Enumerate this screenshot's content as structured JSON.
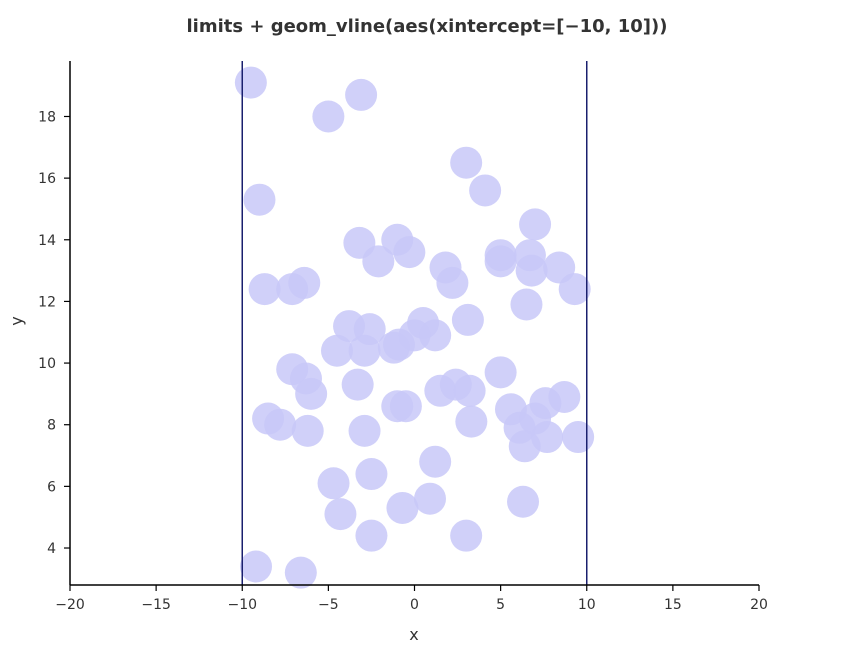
{
  "chart_data": {
    "type": "scatter",
    "title": "limits + geom_vline(aes(xintercept=[−10, 10]))",
    "xlabel": "x",
    "ylabel": "y",
    "xlim": [
      -20,
      20
    ],
    "ylim": [
      2.8,
      19.8
    ],
    "xticks": [
      -20,
      -15,
      -10,
      -5,
      0,
      5,
      10,
      15,
      20
    ],
    "xtick_labels": [
      "−20",
      "−15",
      "−10",
      "−5",
      "0",
      "5",
      "10",
      "15",
      "20"
    ],
    "yticks": [
      4,
      6,
      8,
      10,
      12,
      14,
      16,
      18
    ],
    "ytick_labels": [
      "4",
      "6",
      "8",
      "10",
      "12",
      "14",
      "16",
      "18"
    ],
    "vlines": [
      -10,
      10
    ],
    "grid": false,
    "colors": {
      "point": "#c8c8f8",
      "vline": "#1a1f6e",
      "axis": "#000000",
      "text": "#333333"
    },
    "points": [
      {
        "x": -9.5,
        "y": 19.1
      },
      {
        "x": -3.1,
        "y": 18.7
      },
      {
        "x": -5.0,
        "y": 18.0
      },
      {
        "x": -9.0,
        "y": 15.3
      },
      {
        "x": 3.0,
        "y": 16.5
      },
      {
        "x": 4.1,
        "y": 15.6
      },
      {
        "x": 7.0,
        "y": 14.5
      },
      {
        "x": -3.2,
        "y": 13.9
      },
      {
        "x": -1.0,
        "y": 14.0
      },
      {
        "x": -2.1,
        "y": 13.3
      },
      {
        "x": -0.3,
        "y": 13.6
      },
      {
        "x": 1.8,
        "y": 13.1
      },
      {
        "x": 2.2,
        "y": 12.6
      },
      {
        "x": 5.0,
        "y": 13.5
      },
      {
        "x": 5.0,
        "y": 13.3
      },
      {
        "x": 6.7,
        "y": 13.5
      },
      {
        "x": 6.8,
        "y": 13.0
      },
      {
        "x": 8.4,
        "y": 13.1
      },
      {
        "x": 6.5,
        "y": 11.9
      },
      {
        "x": 9.3,
        "y": 12.4
      },
      {
        "x": -8.7,
        "y": 12.4
      },
      {
        "x": -7.1,
        "y": 12.4
      },
      {
        "x": -6.4,
        "y": 12.6
      },
      {
        "x": -3.8,
        "y": 11.2
      },
      {
        "x": -2.6,
        "y": 11.1
      },
      {
        "x": -4.5,
        "y": 10.4
      },
      {
        "x": -2.9,
        "y": 10.4
      },
      {
        "x": -1.2,
        "y": 10.5
      },
      {
        "x": -0.9,
        "y": 10.6
      },
      {
        "x": 0.5,
        "y": 11.3
      },
      {
        "x": 1.2,
        "y": 10.9
      },
      {
        "x": 3.1,
        "y": 11.4
      },
      {
        "x": 0.0,
        "y": 10.9
      },
      {
        "x": -7.1,
        "y": 9.8
      },
      {
        "x": -6.3,
        "y": 9.5
      },
      {
        "x": -6.0,
        "y": 9.0
      },
      {
        "x": -3.3,
        "y": 9.3
      },
      {
        "x": 5.0,
        "y": 9.7
      },
      {
        "x": 1.5,
        "y": 9.1
      },
      {
        "x": 2.4,
        "y": 9.3
      },
      {
        "x": 3.2,
        "y": 9.1
      },
      {
        "x": 3.3,
        "y": 8.1
      },
      {
        "x": 5.6,
        "y": 8.5
      },
      {
        "x": 6.1,
        "y": 7.9
      },
      {
        "x": 6.4,
        "y": 7.3
      },
      {
        "x": 7.0,
        "y": 8.2
      },
      {
        "x": 7.6,
        "y": 8.7
      },
      {
        "x": 7.7,
        "y": 7.6
      },
      {
        "x": 8.7,
        "y": 8.9
      },
      {
        "x": 9.5,
        "y": 7.6
      },
      {
        "x": -8.5,
        "y": 8.2
      },
      {
        "x": -7.8,
        "y": 8.0
      },
      {
        "x": -6.2,
        "y": 7.8
      },
      {
        "x": -2.9,
        "y": 7.8
      },
      {
        "x": -1.0,
        "y": 8.6
      },
      {
        "x": -0.5,
        "y": 8.6
      },
      {
        "x": 1.2,
        "y": 6.8
      },
      {
        "x": -4.7,
        "y": 6.1
      },
      {
        "x": -2.5,
        "y": 6.4
      },
      {
        "x": -4.3,
        "y": 5.1
      },
      {
        "x": -0.7,
        "y": 5.3
      },
      {
        "x": 0.9,
        "y": 5.6
      },
      {
        "x": 6.3,
        "y": 5.5
      },
      {
        "x": -2.5,
        "y": 4.4
      },
      {
        "x": 3.0,
        "y": 4.4
      },
      {
        "x": -9.2,
        "y": 3.4
      },
      {
        "x": -6.6,
        "y": 3.2
      }
    ]
  }
}
